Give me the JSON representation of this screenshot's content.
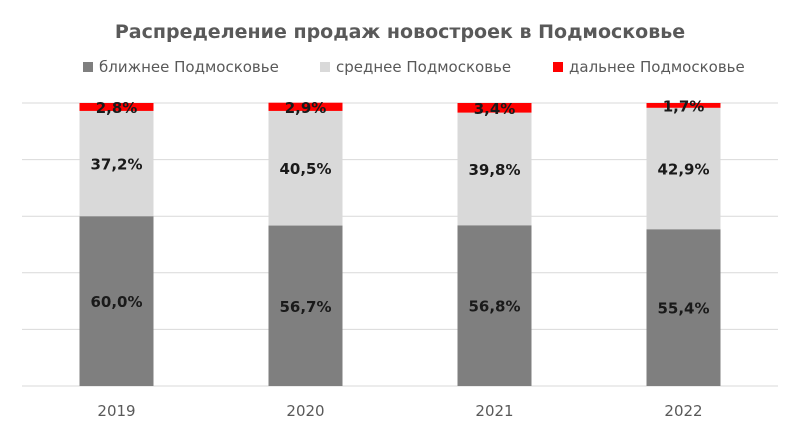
{
  "chart_data": {
    "type": "bar",
    "stacked": true,
    "title": "Распределение продаж новостроек в Подмосковье",
    "categories": [
      "2019",
      "2020",
      "2021",
      "2022"
    ],
    "series": [
      {
        "name": "ближнее Подмосковье",
        "color": "#7f7f7f",
        "values": [
          60.0,
          56.7,
          56.8,
          55.4
        ],
        "labels": [
          "60,0%",
          "56,7%",
          "56,8%",
          "55,4%"
        ]
      },
      {
        "name": "среднее Подмосковье",
        "color": "#d9d9d9",
        "values": [
          37.2,
          40.5,
          39.8,
          42.9
        ],
        "labels": [
          "37,2%",
          "40,5%",
          "39,8%",
          "42,9%"
        ]
      },
      {
        "name": "дальнее Подмосковье",
        "color": "#ff0000",
        "values": [
          2.8,
          2.9,
          3.4,
          1.7
        ],
        "labels": [
          "2,8%",
          "2,9%",
          "3,4%",
          "1,7%"
        ]
      }
    ],
    "ylim": [
      0,
      100
    ],
    "grid": true,
    "legend": "top"
  }
}
